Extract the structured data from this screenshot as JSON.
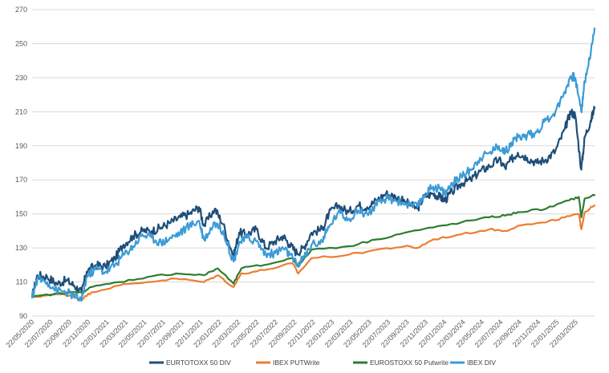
{
  "chart_data": {
    "type": "line",
    "title": "",
    "xlabel": "",
    "ylabel": "",
    "ylim": [
      90,
      270
    ],
    "yticks": [
      90,
      110,
      130,
      150,
      170,
      190,
      210,
      230,
      250,
      270
    ],
    "grid": "horizontal",
    "legend_position": "bottom",
    "x_tick_labels": [
      "22/05/2020",
      "22/07/2020",
      "22/09/2020",
      "22/11/2020",
      "22/01/2021",
      "22/03/2021",
      "22/05/2021",
      "22/07/2021",
      "22/09/2021",
      "22/11/2021",
      "22/01/2022",
      "22/03/2022",
      "22/05/2022",
      "22/07/2022",
      "22/09/2022",
      "22/11/2022",
      "22/01/2023",
      "22/03/2023",
      "22/05/2023",
      "22/07/2023",
      "22/09/2023",
      "22/11/2023",
      "22/01/2024",
      "22/03/2024",
      "22/05/2024",
      "22/07/2024",
      "22/09/2024",
      "22/11/2024",
      "22/01/2025",
      "22/03/2025"
    ],
    "x_range": [
      "2020-05-22",
      "2025-05-22"
    ],
    "series": [
      {
        "name": "EURTOTOXX 50 DIV",
        "color": "#1f4e79",
        "points": [
          [
            "2020-05-22",
            101
          ],
          [
            "2020-06-08",
            114
          ],
          [
            "2020-07-10",
            113
          ],
          [
            "2020-08-10",
            109
          ],
          [
            "2020-09-10",
            111
          ],
          [
            "2020-10-05",
            108
          ],
          [
            "2020-10-30",
            104
          ],
          [
            "2020-11-15",
            116
          ],
          [
            "2020-12-15",
            120
          ],
          [
            "2021-01-15",
            119
          ],
          [
            "2021-02-15",
            124
          ],
          [
            "2021-03-15",
            132
          ],
          [
            "2021-04-15",
            137
          ],
          [
            "2021-05-15",
            140
          ],
          [
            "2021-06-15",
            140
          ],
          [
            "2021-07-15",
            142
          ],
          [
            "2021-08-15",
            145
          ],
          [
            "2021-09-15",
            148
          ],
          [
            "2021-10-15",
            150
          ],
          [
            "2021-11-15",
            154
          ],
          [
            "2021-12-01",
            143
          ],
          [
            "2022-01-05",
            153
          ],
          [
            "2022-02-01",
            144
          ],
          [
            "2022-03-07",
            125
          ],
          [
            "2022-03-25",
            139
          ],
          [
            "2022-04-20",
            138
          ],
          [
            "2022-05-20",
            141
          ],
          [
            "2022-06-20",
            130
          ],
          [
            "2022-07-20",
            134
          ],
          [
            "2022-08-15",
            137
          ],
          [
            "2022-09-05",
            132
          ],
          [
            "2022-09-29",
            127
          ],
          [
            "2022-10-20",
            130
          ],
          [
            "2022-11-15",
            139
          ],
          [
            "2022-12-20",
            141
          ],
          [
            "2023-01-10",
            150
          ],
          [
            "2023-02-10",
            155
          ],
          [
            "2023-03-15",
            151
          ],
          [
            "2023-04-15",
            155
          ],
          [
            "2023-05-15",
            154
          ],
          [
            "2023-06-15",
            158
          ],
          [
            "2023-07-15",
            162
          ],
          [
            "2023-08-15",
            160
          ],
          [
            "2023-09-15",
            157
          ],
          [
            "2023-10-25",
            153
          ],
          [
            "2023-11-15",
            160
          ],
          [
            "2023-12-15",
            162
          ],
          [
            "2024-01-05",
            160
          ],
          [
            "2024-01-22",
            158
          ],
          [
            "2024-02-15",
            163
          ],
          [
            "2024-03-15",
            168
          ],
          [
            "2024-04-15",
            170
          ],
          [
            "2024-05-15",
            175
          ],
          [
            "2024-06-15",
            178
          ],
          [
            "2024-07-15",
            182
          ],
          [
            "2024-08-05",
            177
          ],
          [
            "2024-08-25",
            182
          ],
          [
            "2024-09-15",
            186
          ],
          [
            "2024-10-15",
            183
          ],
          [
            "2024-11-15",
            180
          ],
          [
            "2024-12-15",
            182
          ],
          [
            "2025-01-15",
            187
          ],
          [
            "2025-02-15",
            200
          ],
          [
            "2025-03-05",
            210
          ],
          [
            "2025-03-20",
            208
          ],
          [
            "2025-04-09",
            176
          ],
          [
            "2025-04-20",
            195
          ],
          [
            "2025-05-10",
            205
          ],
          [
            "2025-05-22",
            212
          ]
        ]
      },
      {
        "name": "IBEX PUTWrite",
        "color": "#ed7d31",
        "points": [
          [
            "2020-05-22",
            101
          ],
          [
            "2020-07-01",
            102
          ],
          [
            "2020-09-01",
            103
          ],
          [
            "2020-10-30",
            100
          ],
          [
            "2020-12-01",
            104
          ],
          [
            "2021-03-01",
            108
          ],
          [
            "2021-06-01",
            110
          ],
          [
            "2021-09-01",
            112
          ],
          [
            "2021-12-01",
            110
          ],
          [
            "2022-01-15",
            114
          ],
          [
            "2022-03-07",
            107
          ],
          [
            "2022-04-01",
            115
          ],
          [
            "2022-06-15",
            117
          ],
          [
            "2022-09-15",
            121
          ],
          [
            "2022-10-03",
            115
          ],
          [
            "2022-11-15",
            124
          ],
          [
            "2023-03-15",
            126
          ],
          [
            "2023-06-15",
            129
          ],
          [
            "2023-09-15",
            131
          ],
          [
            "2023-10-25",
            130
          ],
          [
            "2023-12-15",
            135
          ],
          [
            "2024-03-15",
            138
          ],
          [
            "2024-06-15",
            141
          ],
          [
            "2024-08-05",
            140
          ],
          [
            "2024-09-15",
            143
          ],
          [
            "2024-12-15",
            145
          ],
          [
            "2025-02-15",
            148
          ],
          [
            "2025-04-01",
            150
          ],
          [
            "2025-04-09",
            141
          ],
          [
            "2025-04-20",
            151
          ],
          [
            "2025-05-22",
            155
          ]
        ]
      },
      {
        "name": "EUROSTOXX 50 Putwrite",
        "color": "#2e7d32",
        "points": [
          [
            "2020-05-22",
            101
          ],
          [
            "2020-08-01",
            103
          ],
          [
            "2020-10-30",
            104
          ],
          [
            "2020-12-01",
            107
          ],
          [
            "2021-03-01",
            110
          ],
          [
            "2021-06-01",
            113
          ],
          [
            "2021-09-01",
            115
          ],
          [
            "2021-12-01",
            114
          ],
          [
            "2022-01-15",
            118
          ],
          [
            "2022-03-07",
            109
          ],
          [
            "2022-04-01",
            118
          ],
          [
            "2022-06-15",
            120
          ],
          [
            "2022-09-15",
            124
          ],
          [
            "2022-10-03",
            119
          ],
          [
            "2022-11-15",
            129
          ],
          [
            "2023-03-15",
            131
          ],
          [
            "2023-06-15",
            135
          ],
          [
            "2023-09-15",
            139
          ],
          [
            "2023-12-15",
            142
          ],
          [
            "2024-03-15",
            145
          ],
          [
            "2024-06-15",
            148
          ],
          [
            "2024-08-05",
            149
          ],
          [
            "2024-09-15",
            151
          ],
          [
            "2024-12-15",
            153
          ],
          [
            "2025-03-01",
            158
          ],
          [
            "2025-04-01",
            160
          ],
          [
            "2025-04-09",
            148
          ],
          [
            "2025-04-20",
            159
          ],
          [
            "2025-05-22",
            161
          ]
        ]
      },
      {
        "name": "IBEX DIV",
        "color": "#3c9bd6",
        "points": [
          [
            "2020-05-22",
            101
          ],
          [
            "2020-06-08",
            112
          ],
          [
            "2020-07-10",
            110
          ],
          [
            "2020-08-10",
            105
          ],
          [
            "2020-09-10",
            104
          ],
          [
            "2020-10-05",
            102
          ],
          [
            "2020-10-30",
            99
          ],
          [
            "2020-11-15",
            113
          ],
          [
            "2020-12-15",
            118
          ],
          [
            "2021-01-15",
            116
          ],
          [
            "2021-02-15",
            120
          ],
          [
            "2021-03-15",
            126
          ],
          [
            "2021-04-15",
            131
          ],
          [
            "2021-05-15",
            138
          ],
          [
            "2021-06-15",
            136
          ],
          [
            "2021-07-15",
            133
          ],
          [
            "2021-08-15",
            136
          ],
          [
            "2021-09-15",
            139
          ],
          [
            "2021-10-15",
            143
          ],
          [
            "2021-11-15",
            146
          ],
          [
            "2021-12-01",
            135
          ],
          [
            "2022-01-05",
            145
          ],
          [
            "2022-02-01",
            140
          ],
          [
            "2022-03-07",
            122
          ],
          [
            "2022-03-25",
            133
          ],
          [
            "2022-04-20",
            136
          ],
          [
            "2022-05-20",
            134
          ],
          [
            "2022-06-20",
            126
          ],
          [
            "2022-07-20",
            127
          ],
          [
            "2022-08-15",
            130
          ],
          [
            "2022-09-05",
            126
          ],
          [
            "2022-09-29",
            120
          ],
          [
            "2022-10-20",
            124
          ],
          [
            "2022-11-15",
            132
          ],
          [
            "2022-12-20",
            134
          ],
          [
            "2023-01-10",
            142
          ],
          [
            "2023-02-10",
            151
          ],
          [
            "2023-03-15",
            147
          ],
          [
            "2023-04-15",
            152
          ],
          [
            "2023-05-15",
            150
          ],
          [
            "2023-06-15",
            155
          ],
          [
            "2023-07-15",
            159
          ],
          [
            "2023-08-15",
            158
          ],
          [
            "2023-09-15",
            156
          ],
          [
            "2023-10-25",
            154
          ],
          [
            "2023-11-15",
            161
          ],
          [
            "2023-12-15",
            166
          ],
          [
            "2024-01-05",
            165
          ],
          [
            "2024-01-22",
            162
          ],
          [
            "2024-02-15",
            168
          ],
          [
            "2024-03-15",
            172
          ],
          [
            "2024-04-15",
            176
          ],
          [
            "2024-05-15",
            183
          ],
          [
            "2024-06-15",
            186
          ],
          [
            "2024-07-15",
            190
          ],
          [
            "2024-08-05",
            186
          ],
          [
            "2024-08-25",
            192
          ],
          [
            "2024-09-15",
            195
          ],
          [
            "2024-10-15",
            196
          ],
          [
            "2024-11-15",
            198
          ],
          [
            "2024-12-15",
            205
          ],
          [
            "2025-01-15",
            210
          ],
          [
            "2025-02-15",
            222
          ],
          [
            "2025-03-05",
            231
          ],
          [
            "2025-03-20",
            230
          ],
          [
            "2025-04-09",
            210
          ],
          [
            "2025-04-20",
            228
          ],
          [
            "2025-05-10",
            245
          ],
          [
            "2025-05-22",
            259
          ]
        ]
      }
    ]
  }
}
